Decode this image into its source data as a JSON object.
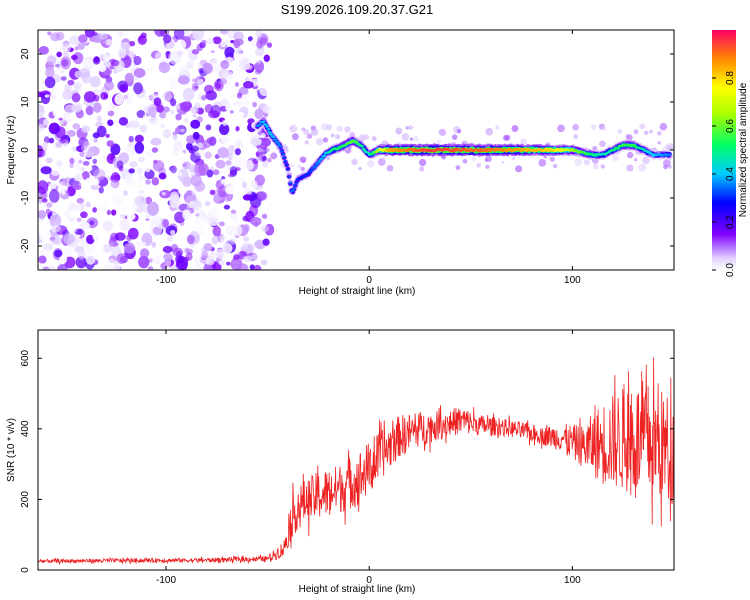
{
  "title": "S199.2026.109.20.37.G21",
  "chart_data": [
    {
      "type": "heatmap",
      "xlabel": "Height of straight line (km)",
      "ylabel": "Frequency (Hz)",
      "xlim": [
        -163,
        150
      ],
      "ylim": [
        -25,
        25
      ],
      "xticks": [
        -100,
        0,
        100
      ],
      "yticks": [
        -20,
        -10,
        0,
        10,
        20
      ],
      "colorbar": {
        "label": "Normalized spectral amplitude",
        "range": [
          0,
          1
        ],
        "ticks": [
          0.0,
          0.2,
          0.4,
          0.6,
          0.8
        ]
      },
      "ridge": {
        "x": [
          -55,
          -52,
          -48,
          -44,
          -40,
          -38,
          -35,
          -30,
          -26,
          -22,
          -18,
          -12,
          -8,
          -4,
          0,
          5,
          10,
          30,
          60,
          90,
          100,
          110,
          115,
          120,
          125,
          130,
          135,
          140,
          148
        ],
        "freq": [
          5,
          6,
          3,
          1,
          -4,
          -9,
          -6,
          -5,
          -3,
          -1,
          0,
          1,
          2,
          1,
          -1,
          0,
          0,
          0,
          0,
          0,
          0,
          -1,
          -1,
          0,
          1,
          1,
          0,
          -1,
          -1
        ],
        "amplitude": [
          0.35,
          0.4,
          0.4,
          0.35,
          0.3,
          0.35,
          0.3,
          0.3,
          0.35,
          0.4,
          0.5,
          0.55,
          0.6,
          0.5,
          0.45,
          0.7,
          0.85,
          0.95,
          0.9,
          0.8,
          0.65,
          0.5,
          0.45,
          0.5,
          0.55,
          0.55,
          0.45,
          0.4,
          0.35
        ]
      },
      "noise_region_x": [
        -163,
        -55
      ],
      "noise_amplitude_max": 0.2
    },
    {
      "type": "line",
      "xlabel": "Height of straight line (km)",
      "ylabel": "SNR (10 * v/v)",
      "xlim": [
        -163,
        150
      ],
      "ylim": [
        0,
        680
      ],
      "xticks": [
        -100,
        0,
        100
      ],
      "yticks": [
        0,
        200,
        400,
        600
      ],
      "color": "#ee2222",
      "envelope": {
        "x": [
          -163,
          -120,
          -80,
          -50,
          -42,
          -38,
          -33,
          -25,
          -15,
          -5,
          5,
          15,
          25,
          35,
          45,
          55,
          65,
          75,
          85,
          95,
          105,
          115,
          125,
          135,
          145,
          150
        ],
        "mean": [
          25,
          27,
          28,
          32,
          60,
          150,
          190,
          210,
          230,
          260,
          320,
          380,
          400,
          410,
          425,
          410,
          405,
          395,
          380,
          375,
          350,
          360,
          370,
          370,
          350,
          340
        ],
        "spread": [
          5,
          6,
          6,
          8,
          25,
          60,
          60,
          70,
          70,
          80,
          70,
          60,
          50,
          40,
          40,
          30,
          25,
          25,
          25,
          40,
          60,
          120,
          150,
          170,
          160,
          150
        ]
      }
    }
  ]
}
